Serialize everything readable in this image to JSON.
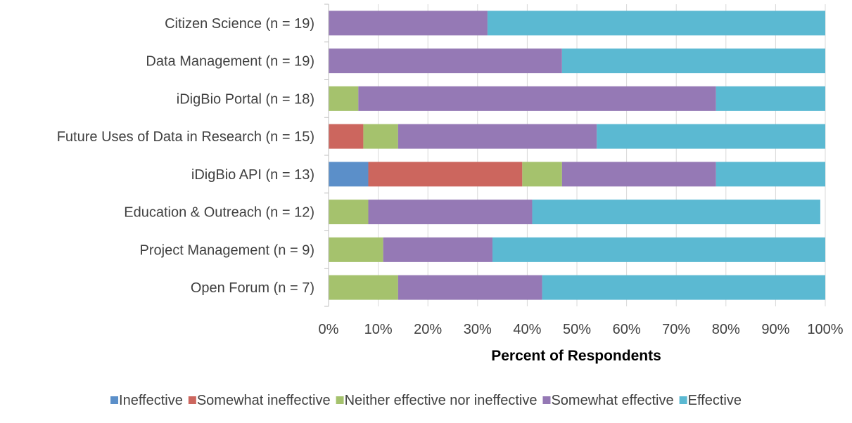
{
  "chart_data": {
    "type": "bar",
    "orientation": "horizontal",
    "stacked": true,
    "categories": [
      "Citizen Science (n = 19)",
      "Data Management (n = 19)",
      "iDigBio Portal (n = 18)",
      "Future Uses of Data in Research (n = 15)",
      "iDigBio API (n = 13)",
      "Education & Outreach (n = 12)",
      "Project Management (n = 9)",
      "Open Forum (n = 7)"
    ],
    "series": [
      {
        "name": "Ineffective",
        "color": "#5b8fc9",
        "values": [
          0,
          0,
          0,
          0,
          8,
          0,
          0,
          0
        ]
      },
      {
        "name": "Somewhat ineffective",
        "color": "#cc665e",
        "values": [
          0,
          0,
          0,
          7,
          31,
          0,
          0,
          0
        ]
      },
      {
        "name": "Neither effective nor ineffective",
        "color": "#a5c26d",
        "values": [
          0,
          0,
          6,
          7,
          8,
          8,
          11,
          14
        ]
      },
      {
        "name": "Somewhat effective",
        "color": "#9579b5",
        "values": [
          32,
          47,
          72,
          40,
          31,
          33,
          22,
          29
        ]
      },
      {
        "name": "Effective",
        "color": "#5bb9d2",
        "values": [
          68,
          53,
          22,
          46,
          22,
          58,
          67,
          57
        ]
      }
    ],
    "xlim": [
      0,
      100
    ],
    "xticks": [
      "0%",
      "10%",
      "20%",
      "30%",
      "40%",
      "50%",
      "60%",
      "70%",
      "80%",
      "90%",
      "100%"
    ],
    "xlabel": "Percent of Respondents",
    "ylabel": "",
    "title": "",
    "grid": "vertical",
    "legend_position": "bottom"
  }
}
